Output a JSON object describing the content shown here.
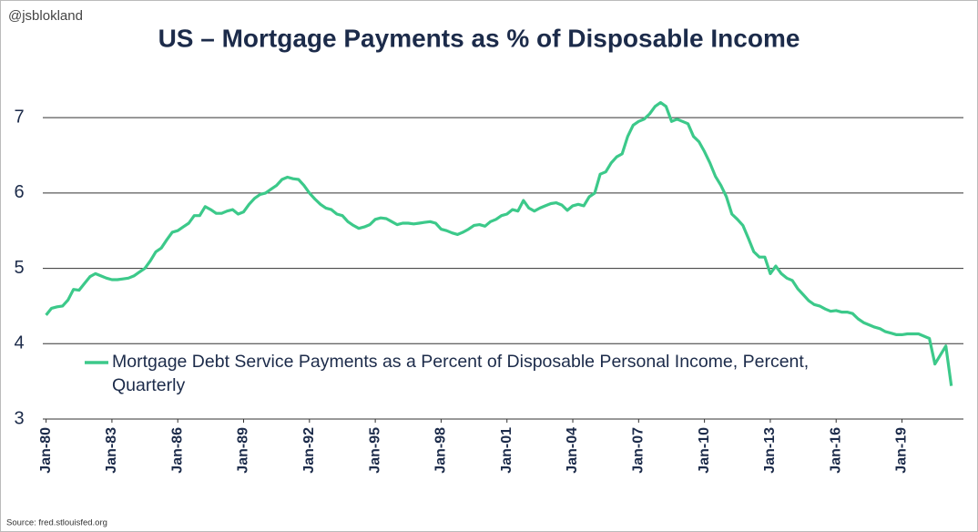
{
  "chart_data": {
    "type": "line",
    "title": "US – Mortgage Payments as % of Disposable Income",
    "watermark": "@jsblokland",
    "source": "Source: fred.stlouisfed.org",
    "x": [
      1980,
      1980.25,
      1980.5,
      1980.75,
      1981,
      1981.25,
      1981.5,
      1981.75,
      1982,
      1982.25,
      1982.5,
      1982.75,
      1983,
      1983.25,
      1983.5,
      1983.75,
      1984,
      1984.25,
      1984.5,
      1984.75,
      1985,
      1985.25,
      1985.5,
      1985.75,
      1986,
      1986.25,
      1986.5,
      1986.75,
      1987,
      1987.25,
      1987.5,
      1987.75,
      1988,
      1988.25,
      1988.5,
      1988.75,
      1989,
      1989.25,
      1989.5,
      1989.75,
      1990,
      1990.25,
      1990.5,
      1990.75,
      1991,
      1991.25,
      1991.5,
      1991.75,
      1992,
      1992.25,
      1992.5,
      1992.75,
      1993,
      1993.25,
      1993.5,
      1993.75,
      1994,
      1994.25,
      1994.5,
      1994.75,
      1995,
      1995.25,
      1995.5,
      1995.75,
      1996,
      1996.25,
      1996.5,
      1996.75,
      1997,
      1997.25,
      1997.5,
      1997.75,
      1998,
      1998.25,
      1998.5,
      1998.75,
      1999,
      1999.25,
      1999.5,
      1999.75,
      2000,
      2000.25,
      2000.5,
      2000.75,
      2001,
      2001.25,
      2001.5,
      2001.75,
      2002,
      2002.25,
      2002.5,
      2002.75,
      2003,
      2003.25,
      2003.5,
      2003.75,
      2004,
      2004.25,
      2004.5,
      2004.75,
      2005,
      2005.25,
      2005.5,
      2005.75,
      2006,
      2006.25,
      2006.5,
      2006.75,
      2007,
      2007.25,
      2007.5,
      2007.75,
      2008,
      2008.25,
      2008.5,
      2008.75,
      2009,
      2009.25,
      2009.5,
      2009.75,
      2010,
      2010.25,
      2010.5,
      2010.75,
      2011,
      2011.25,
      2011.5,
      2011.75,
      2012,
      2012.25,
      2012.5,
      2012.75,
      2013,
      2013.25,
      2013.5,
      2013.75,
      2014,
      2014.25,
      2014.5,
      2014.75,
      2015,
      2015.25,
      2015.5,
      2015.75,
      2016,
      2016.25,
      2016.5,
      2016.75,
      2017,
      2017.25,
      2017.5,
      2017.75,
      2018,
      2018.25,
      2018.5,
      2018.75,
      2019,
      2019.25,
      2019.5,
      2019.75,
      2020,
      2020.25,
      2020.5,
      2020.75,
      2021,
      2021.25
    ],
    "series": [
      {
        "name": "Mortgage Debt Service Payments as a Percent of Disposable Personal Income, Percent, Quarterly",
        "color": "#3cc98a",
        "values": [
          4.38,
          4.47,
          4.49,
          4.5,
          4.58,
          4.72,
          4.71,
          4.8,
          4.89,
          4.93,
          4.9,
          4.87,
          4.85,
          4.85,
          4.86,
          4.87,
          4.9,
          4.95,
          5.0,
          5.1,
          5.22,
          5.27,
          5.38,
          5.48,
          5.5,
          5.55,
          5.6,
          5.7,
          5.7,
          5.82,
          5.78,
          5.73,
          5.73,
          5.76,
          5.78,
          5.72,
          5.75,
          5.85,
          5.93,
          5.98,
          6.0,
          6.05,
          6.1,
          6.18,
          6.21,
          6.19,
          6.18,
          6.1,
          6.0,
          5.92,
          5.85,
          5.8,
          5.78,
          5.72,
          5.7,
          5.62,
          5.57,
          5.53,
          5.55,
          5.58,
          5.65,
          5.67,
          5.66,
          5.62,
          5.58,
          5.6,
          5.6,
          5.59,
          5.6,
          5.61,
          5.62,
          5.6,
          5.52,
          5.5,
          5.47,
          5.45,
          5.48,
          5.52,
          5.57,
          5.58,
          5.56,
          5.62,
          5.65,
          5.7,
          5.72,
          5.78,
          5.76,
          5.9,
          5.8,
          5.76,
          5.8,
          5.83,
          5.86,
          5.87,
          5.84,
          5.77,
          5.83,
          5.85,
          5.83,
          5.95,
          6.0,
          6.25,
          6.28,
          6.4,
          6.48,
          6.52,
          6.75,
          6.9,
          6.95,
          6.98,
          7.05,
          7.15,
          7.2,
          7.15,
          6.95,
          6.98,
          6.95,
          6.92,
          6.75,
          6.68,
          6.55,
          6.4,
          6.22,
          6.1,
          5.95,
          5.72,
          5.65,
          5.57,
          5.4,
          5.22,
          5.15,
          5.15,
          4.93,
          5.03,
          4.93,
          4.87,
          4.84,
          4.73,
          4.65,
          4.57,
          4.52,
          4.5,
          4.46,
          4.43,
          4.44,
          4.42,
          4.42,
          4.4,
          4.33,
          4.28,
          4.25,
          4.22,
          4.2,
          4.16,
          4.14,
          4.12,
          4.12,
          4.13,
          4.13,
          4.13,
          4.1,
          4.07,
          3.73,
          3.85,
          3.97,
          3.44
        ]
      }
    ],
    "xlim": [
      1979.85,
      2021.8
    ],
    "xticks": [
      {
        "value": 1980,
        "label": "Jan-80"
      },
      {
        "value": 1983,
        "label": "Jan-83"
      },
      {
        "value": 1986,
        "label": "Jan-86"
      },
      {
        "value": 1989,
        "label": "Jan-89"
      },
      {
        "value": 1992,
        "label": "Jan-92"
      },
      {
        "value": 1995,
        "label": "Jan-95"
      },
      {
        "value": 1998,
        "label": "Jan-98"
      },
      {
        "value": 2001,
        "label": "Jan-01"
      },
      {
        "value": 2004,
        "label": "Jan-04"
      },
      {
        "value": 2007,
        "label": "Jan-07"
      },
      {
        "value": 2010,
        "label": "Jan-10"
      },
      {
        "value": 2013,
        "label": "Jan-13"
      },
      {
        "value": 2016,
        "label": "Jan-16"
      },
      {
        "value": 2019,
        "label": "Jan-19"
      }
    ],
    "ylim": [
      3,
      7.8
    ],
    "yticks": [
      3,
      4,
      5,
      6,
      7
    ],
    "grid": true,
    "legend": "lower left"
  }
}
